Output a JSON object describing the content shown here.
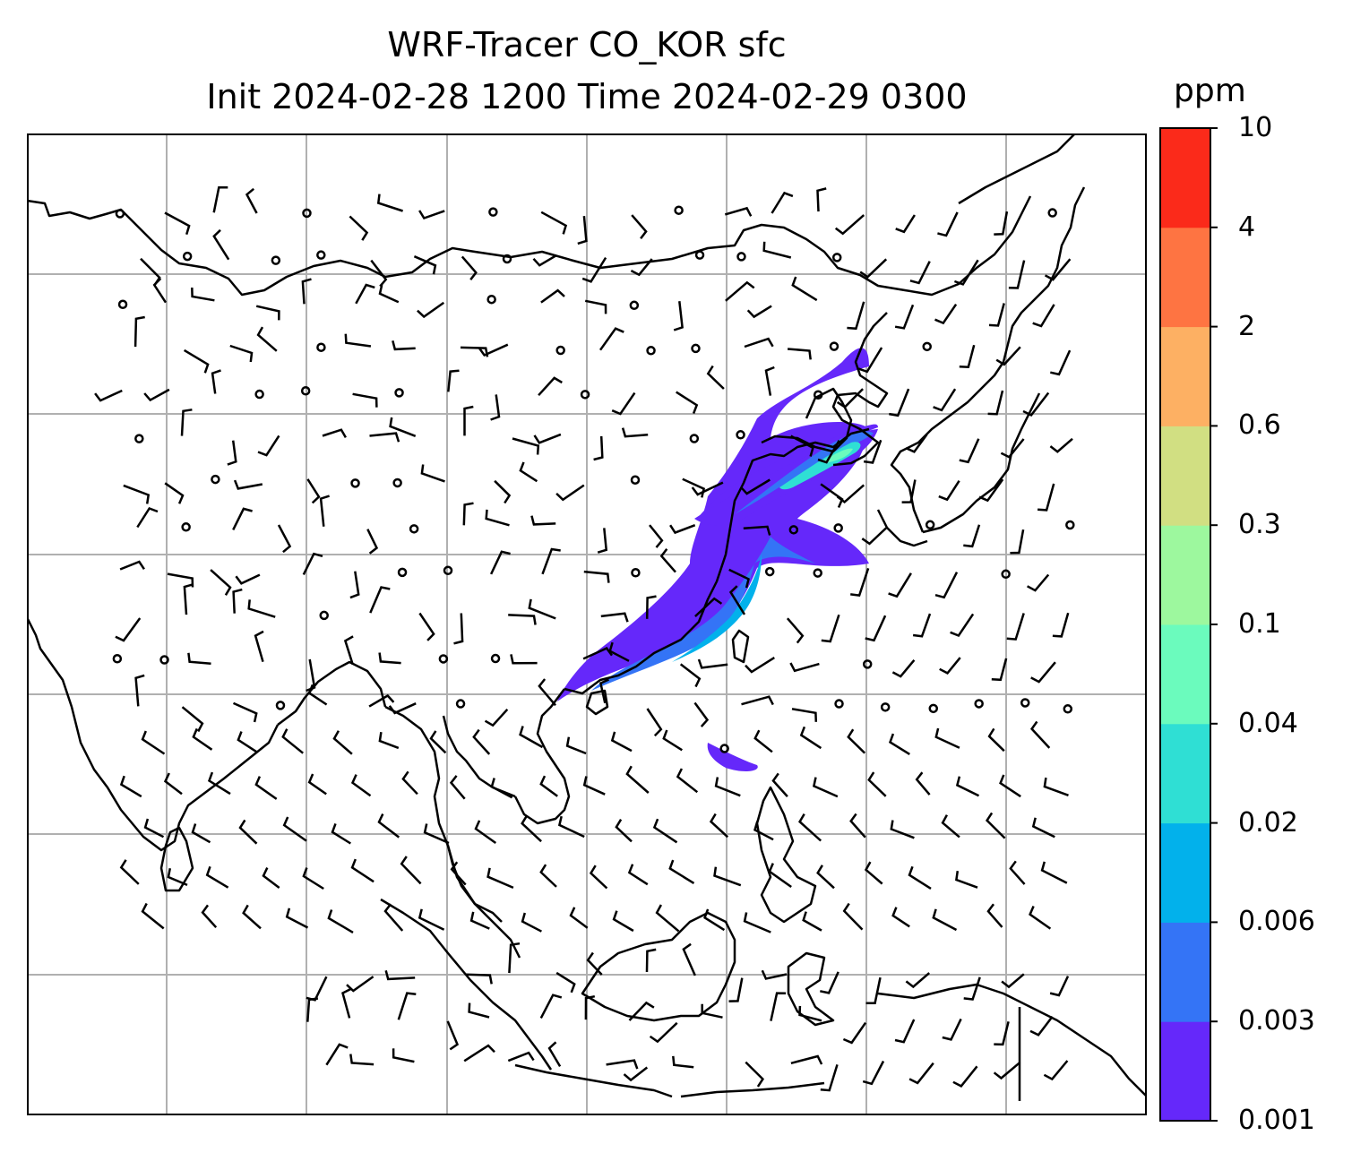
{
  "title": {
    "line1": "WRF-Tracer CO_KOR sfc",
    "line2": "Init 2024-02-28 1200 Time 2024-02-29 0300"
  },
  "colorbar": {
    "unit": "ppm",
    "levels": [
      "0.001",
      "0.003",
      "0.006",
      "0.02",
      "0.04",
      "0.1",
      "0.3",
      "0.6",
      "2",
      "4",
      "10"
    ],
    "colors": [
      "#6528fa",
      "#3474f6",
      "#02b1eb",
      "#2fdfd4",
      "#6bfbbd",
      "#9df89e",
      "#d1df82",
      "#fdb063",
      "#fe7442",
      "#fb2a1a"
    ]
  },
  "map": {
    "gridlines": true,
    "coastline_color": "#000000",
    "grid_color": "#b0b0b0",
    "tracer_peak_colors": [
      "#2fdfd4",
      "#6bfbbd",
      "#02b1eb"
    ]
  }
}
